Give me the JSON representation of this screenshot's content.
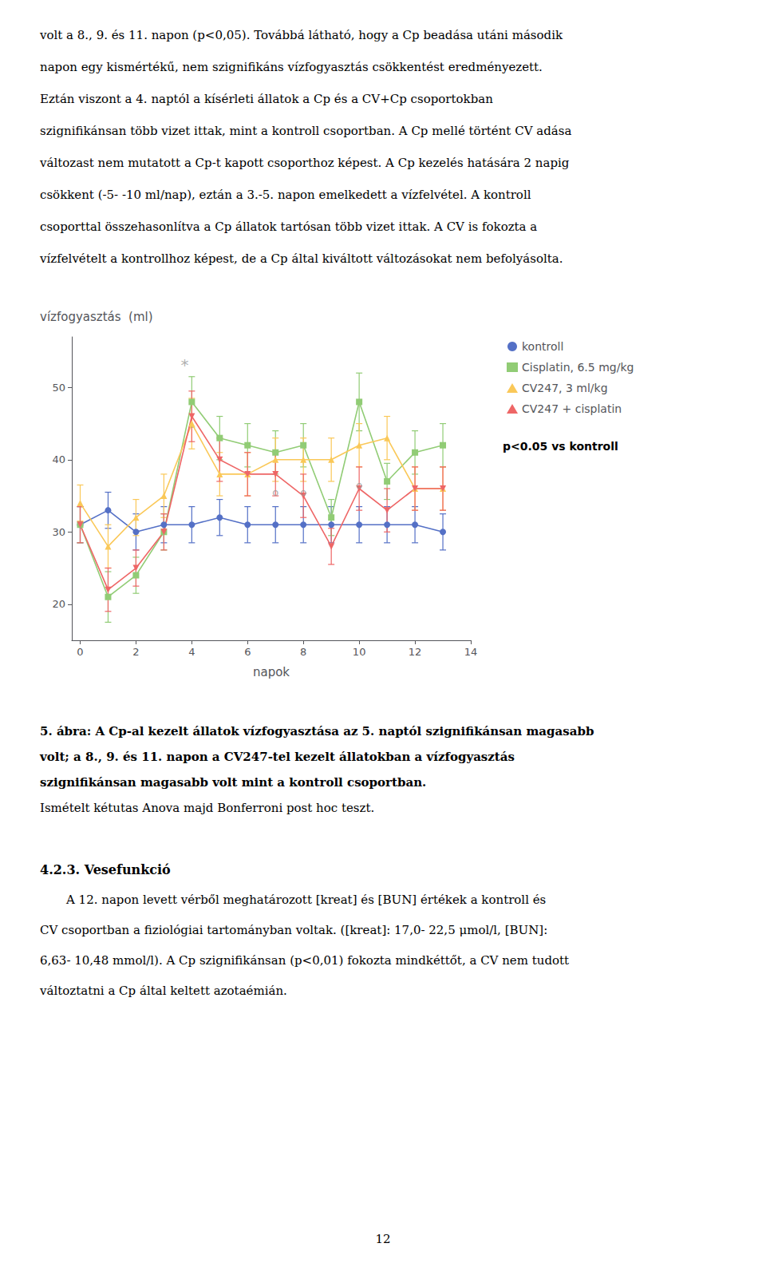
{
  "chart_data": {
    "type": "line",
    "xlabel": "napok",
    "ylabel": "vízfogyasztás  (ml)",
    "x": [
      0,
      1,
      2,
      3,
      4,
      5,
      6,
      7,
      8,
      9,
      10,
      11,
      12,
      13
    ],
    "xlim": [
      -0.3,
      14
    ],
    "xticks": [
      0,
      2,
      4,
      6,
      8,
      10,
      12,
      14
    ],
    "ylim": [
      15,
      57
    ],
    "yticks": [
      20,
      30,
      40,
      50
    ],
    "grid": false,
    "legend": "right",
    "legend_note": "p<0.05 vs kontroll",
    "series": [
      {
        "name": "kontroll",
        "marker": "circle",
        "values": [
          31,
          33,
          30,
          31,
          31,
          32,
          31,
          31,
          31,
          31,
          31,
          31,
          31,
          30
        ],
        "errors": [
          2.5,
          2.5,
          2.5,
          2.5,
          2.5,
          2.5,
          2.5,
          2.5,
          2.5,
          2.5,
          2.5,
          2.5,
          2.5,
          2.5
        ]
      },
      {
        "name": "Cisplatin, 6.5 mg/kg",
        "marker": "square",
        "values": [
          31,
          21,
          24,
          30,
          48,
          43,
          42,
          41,
          42,
          32,
          48,
          37,
          41,
          42
        ],
        "errors": [
          2.5,
          3.5,
          2.5,
          2.5,
          3.5,
          3.0,
          3.0,
          3.0,
          3.0,
          2.5,
          4.0,
          2.5,
          3.0,
          3.0
        ]
      },
      {
        "name": "CV247, 3 ml/kg",
        "marker": "triangle-up",
        "values": [
          34,
          28,
          32,
          35,
          45,
          38,
          38,
          40,
          40,
          40,
          42,
          43,
          36,
          36
        ],
        "errors": [
          2.5,
          3.0,
          2.5,
          3.0,
          3.5,
          3.0,
          3.0,
          3.0,
          3.0,
          3.0,
          3.0,
          3.0,
          3.0,
          3.0
        ]
      },
      {
        "name": "CV247 + cisplatin",
        "marker": "triangle-down",
        "values": [
          31,
          22,
          25,
          30,
          46,
          40,
          38,
          38,
          35,
          28,
          36,
          33,
          36,
          36
        ],
        "errors": [
          2.5,
          3.0,
          2.5,
          2.5,
          3.5,
          3.0,
          3.0,
          3.0,
          3.0,
          2.5,
          3.0,
          3.0,
          3.0,
          3.0
        ]
      }
    ],
    "annotations": [
      {
        "text": "*",
        "x": 3.75,
        "y": 51.5
      },
      {
        "text": "o",
        "x": 7,
        "y": 35.5
      },
      {
        "text": "o",
        "x": 8,
        "y": 35.5
      },
      {
        "text": "o",
        "x": 10,
        "y": 36.5
      }
    ]
  },
  "text_before": [
    "volt a 8., 9. és 11. napon (p<0,05). Továbbá látható, hogy a Cp beadása utáni második",
    "napon egy kismértékű, nem szignifikáns vízfogyasztás csökkentést eredményezett.",
    "Eztán viszont a 4. naptól a kísérleti állatok a Cp és a CV+Cp csoportokban",
    "szignifikánsan több vizet ittak, mint a kontroll csoportban. A Cp mellé történt CV adása",
    "változast nem mutatott a Cp-t kapott csoporthoz képest. A Cp kezelés hatására 2 napig",
    "csökkent (-5- -10 ml/nap), eztán a 3.-5. napon emelkedett a vízfelvétel. A kontroll",
    "csoporttal összehasonlítva a Cp állatok tartósan több vizet ittak. A CV is fokozta a",
    "vízfelvételt a kontrollhoz képest, de a Cp által kiváltott változásokat nem befolyásolta."
  ],
  "caption_bold": [
    "5. ábra: A Cp-al kezelt állatok vízfogyasztása az 5. naptól szignifikánsan magasabb",
    "volt; a 8., 9. és 11. napon a CV247-tel kezelt állatokban a vízfogyasztás",
    "szignifikánsan magasabb volt mint a kontroll csoportban."
  ],
  "caption_normal": "Ismételt kétutas Anova majd Bonferroni post hoc teszt.",
  "section_heading": "4.2.3. Vesefunkció",
  "section_text": [
    "A 12. napon levett vérből meghatározott [kreat] és [BUN] értékek a kontroll és",
    "CV csoportban a fiziológiai tartományban voltak. ([kreat]: 17,0- 22,5 μmol/l, [BUN]:",
    "6,63- 10,48 mmol/l). A Cp szignifikánsan (p<0,01) fokozta mindkéttőt, a CV nem tudott",
    "változtatni a Cp által keltett azotaémián."
  ],
  "page_number": "12"
}
